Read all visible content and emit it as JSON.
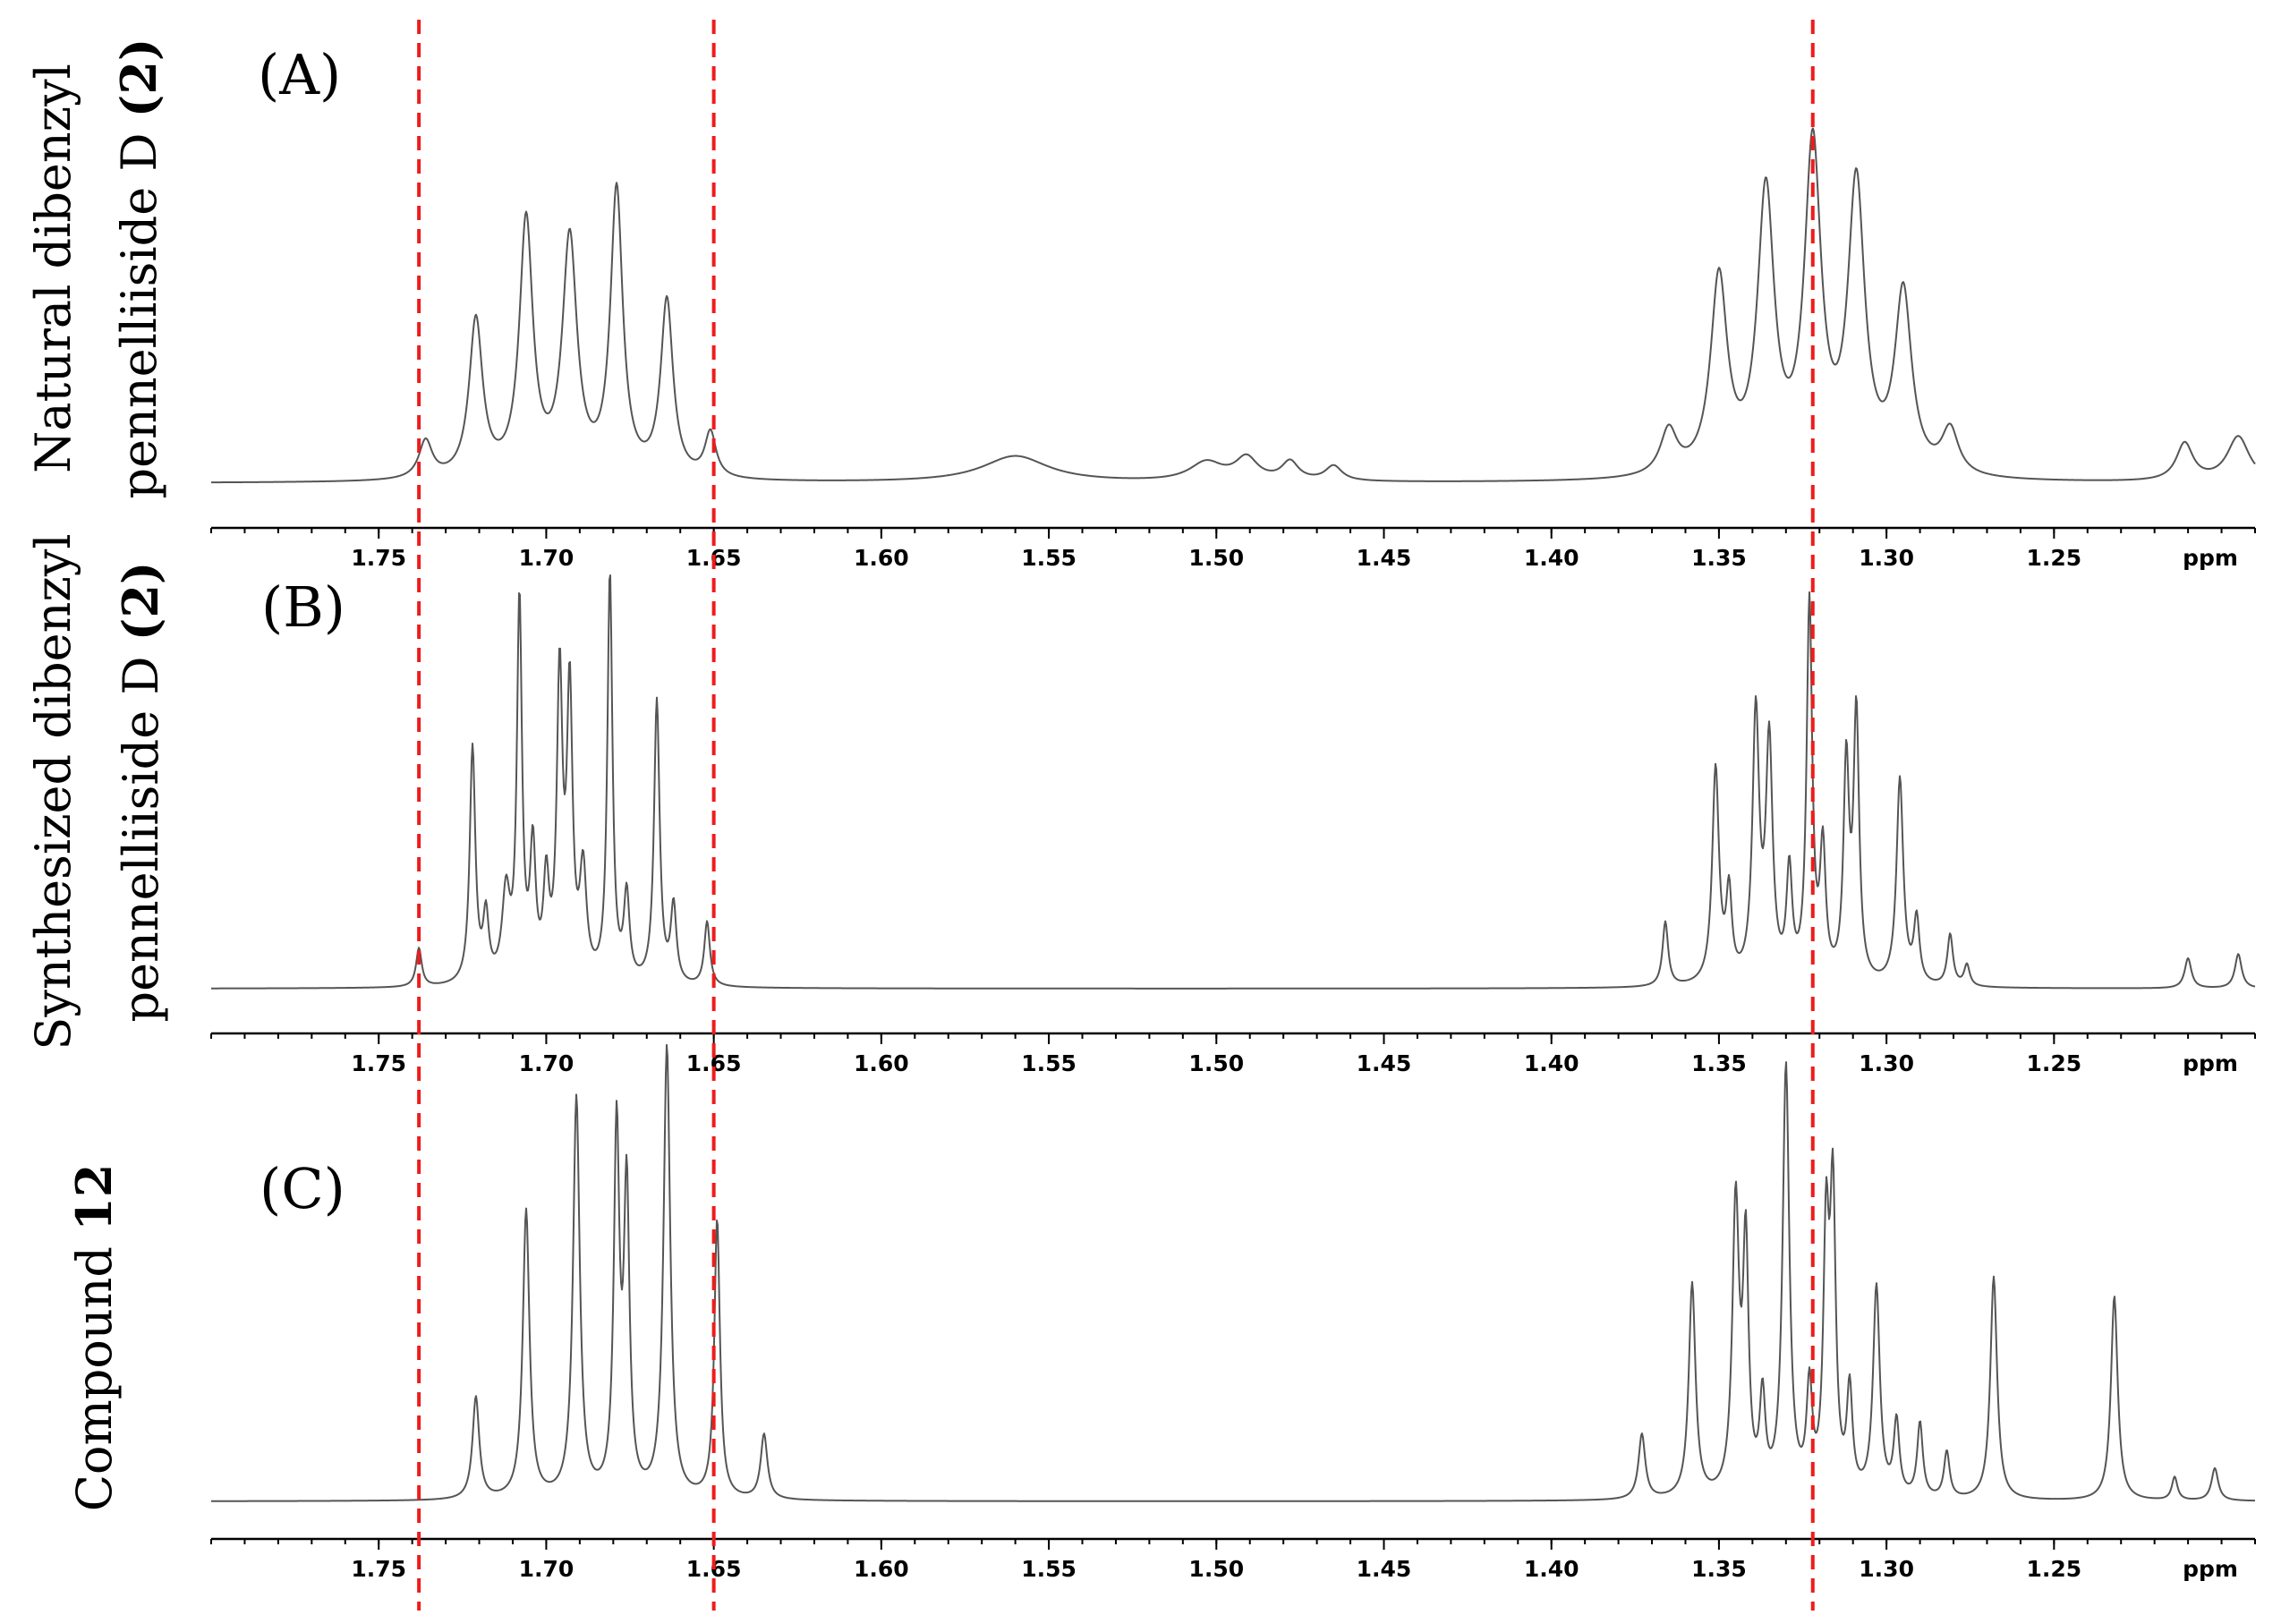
{
  "chart_data": {
    "type": "line",
    "x_axis": {
      "unit_label": "ppm",
      "reversed": true,
      "xlim": [
        1.8,
        1.19
      ],
      "tick_labels": [
        "1.75",
        "1.70",
        "1.65",
        "1.60",
        "1.55",
        "1.50",
        "1.45",
        "1.40",
        "1.35",
        "1.30",
        "1.25"
      ],
      "minor_tick_step": 0.01
    },
    "reference_lines": {
      "color": "#ee1c1c",
      "style": "dashed",
      "x": [
        1.738,
        1.65,
        1.322
      ]
    },
    "line_color": "#555555",
    "panels": [
      {
        "panel_label": "(A)",
        "side_label_lines": [
          [
            {
              "text": "Natural dibenzyl",
              "bold": false
            }
          ],
          [
            {
              "text": "pennelliiside D ",
              "bold": false
            },
            {
              "text": "(2)",
              "bold": true
            }
          ]
        ],
        "baseline": 0.0,
        "peaks": [
          {
            "x": 1.736,
            "h": 0.1,
            "w": 0.0024
          },
          {
            "x": 1.721,
            "h": 0.42,
            "w": 0.0024
          },
          {
            "x": 1.706,
            "h": 0.68,
            "w": 0.0024
          },
          {
            "x": 1.693,
            "h": 0.63,
            "w": 0.0026
          },
          {
            "x": 1.679,
            "h": 0.76,
            "w": 0.0022
          },
          {
            "x": 1.664,
            "h": 0.47,
            "w": 0.0022
          },
          {
            "x": 1.651,
            "h": 0.12,
            "w": 0.002
          },
          {
            "x": 1.56,
            "h": 0.07,
            "w": 0.012
          },
          {
            "x": 1.503,
            "h": 0.05,
            "w": 0.006
          },
          {
            "x": 1.491,
            "h": 0.06,
            "w": 0.004
          },
          {
            "x": 1.478,
            "h": 0.05,
            "w": 0.003
          },
          {
            "x": 1.465,
            "h": 0.04,
            "w": 0.003
          },
          {
            "x": 1.365,
            "h": 0.12,
            "w": 0.003
          },
          {
            "x": 1.35,
            "h": 0.52,
            "w": 0.003
          },
          {
            "x": 1.336,
            "h": 0.74,
            "w": 0.003
          },
          {
            "x": 1.322,
            "h": 0.86,
            "w": 0.003
          },
          {
            "x": 1.309,
            "h": 0.76,
            "w": 0.003
          },
          {
            "x": 1.295,
            "h": 0.48,
            "w": 0.003
          },
          {
            "x": 1.281,
            "h": 0.12,
            "w": 0.003
          },
          {
            "x": 1.211,
            "h": 0.1,
            "w": 0.003
          },
          {
            "x": 1.195,
            "h": 0.12,
            "w": 0.004
          }
        ]
      },
      {
        "panel_label": "(B)",
        "side_label_lines": [
          [
            {
              "text": "Synthesized dibenzyl",
              "bold": false
            }
          ],
          [
            {
              "text": "pennelliiside D ",
              "bold": false
            },
            {
              "text": "(2)",
              "bold": true
            }
          ]
        ],
        "baseline": 0.0,
        "peaks": [
          {
            "x": 1.738,
            "h": 0.09,
            "w": 0.001
          },
          {
            "x": 1.722,
            "h": 0.55,
            "w": 0.001
          },
          {
            "x": 1.718,
            "h": 0.15,
            "w": 0.001
          },
          {
            "x": 1.712,
            "h": 0.2,
            "w": 0.0014
          },
          {
            "x": 1.708,
            "h": 0.88,
            "w": 0.0009
          },
          {
            "x": 1.704,
            "h": 0.3,
            "w": 0.001
          },
          {
            "x": 1.7,
            "h": 0.22,
            "w": 0.001
          },
          {
            "x": 1.696,
            "h": 0.7,
            "w": 0.001
          },
          {
            "x": 1.693,
            "h": 0.66,
            "w": 0.001
          },
          {
            "x": 1.689,
            "h": 0.25,
            "w": 0.0012
          },
          {
            "x": 1.681,
            "h": 0.95,
            "w": 0.0009
          },
          {
            "x": 1.676,
            "h": 0.2,
            "w": 0.001
          },
          {
            "x": 1.667,
            "h": 0.66,
            "w": 0.001
          },
          {
            "x": 1.662,
            "h": 0.18,
            "w": 0.001
          },
          {
            "x": 1.652,
            "h": 0.15,
            "w": 0.001
          },
          {
            "x": 1.366,
            "h": 0.15,
            "w": 0.001
          },
          {
            "x": 1.351,
            "h": 0.5,
            "w": 0.0012
          },
          {
            "x": 1.347,
            "h": 0.2,
            "w": 0.001
          },
          {
            "x": 1.339,
            "h": 0.62,
            "w": 0.0012
          },
          {
            "x": 1.335,
            "h": 0.55,
            "w": 0.0012
          },
          {
            "x": 1.329,
            "h": 0.25,
            "w": 0.001
          },
          {
            "x": 1.323,
            "h": 0.88,
            "w": 0.001
          },
          {
            "x": 1.319,
            "h": 0.3,
            "w": 0.001
          },
          {
            "x": 1.312,
            "h": 0.5,
            "w": 0.001
          },
          {
            "x": 1.309,
            "h": 0.62,
            "w": 0.001
          },
          {
            "x": 1.296,
            "h": 0.48,
            "w": 0.0012
          },
          {
            "x": 1.291,
            "h": 0.15,
            "w": 0.001
          },
          {
            "x": 1.281,
            "h": 0.12,
            "w": 0.001
          },
          {
            "x": 1.276,
            "h": 0.05,
            "w": 0.001
          },
          {
            "x": 1.21,
            "h": 0.07,
            "w": 0.0012
          },
          {
            "x": 1.195,
            "h": 0.08,
            "w": 0.0012
          }
        ]
      },
      {
        "panel_label": "(C)",
        "side_label_lines": [
          [
            {
              "text": "Compound ",
              "bold": false
            },
            {
              "text": "12",
              "bold": true
            }
          ]
        ],
        "baseline": 0.0,
        "peaks": [
          {
            "x": 1.721,
            "h": 0.22,
            "w": 0.0012
          },
          {
            "x": 1.706,
            "h": 0.62,
            "w": 0.0012
          },
          {
            "x": 1.691,
            "h": 0.86,
            "w": 0.0012
          },
          {
            "x": 1.679,
            "h": 0.78,
            "w": 0.001
          },
          {
            "x": 1.676,
            "h": 0.65,
            "w": 0.001
          },
          {
            "x": 1.664,
            "h": 0.97,
            "w": 0.0012
          },
          {
            "x": 1.649,
            "h": 0.6,
            "w": 0.001
          },
          {
            "x": 1.635,
            "h": 0.14,
            "w": 0.0012
          },
          {
            "x": 1.373,
            "h": 0.14,
            "w": 0.0012
          },
          {
            "x": 1.358,
            "h": 0.46,
            "w": 0.0012
          },
          {
            "x": 1.345,
            "h": 0.62,
            "w": 0.0012
          },
          {
            "x": 1.342,
            "h": 0.52,
            "w": 0.001
          },
          {
            "x": 1.337,
            "h": 0.2,
            "w": 0.001
          },
          {
            "x": 1.33,
            "h": 0.92,
            "w": 0.0012
          },
          {
            "x": 1.323,
            "h": 0.22,
            "w": 0.001
          },
          {
            "x": 1.318,
            "h": 0.54,
            "w": 0.001
          },
          {
            "x": 1.316,
            "h": 0.62,
            "w": 0.001
          },
          {
            "x": 1.311,
            "h": 0.22,
            "w": 0.001
          },
          {
            "x": 1.303,
            "h": 0.45,
            "w": 0.0012
          },
          {
            "x": 1.297,
            "h": 0.16,
            "w": 0.001
          },
          {
            "x": 1.29,
            "h": 0.16,
            "w": 0.001
          },
          {
            "x": 1.282,
            "h": 0.1,
            "w": 0.001
          },
          {
            "x": 1.268,
            "h": 0.48,
            "w": 0.0012
          },
          {
            "x": 1.232,
            "h": 0.44,
            "w": 0.0012
          },
          {
            "x": 1.214,
            "h": 0.05,
            "w": 0.001
          },
          {
            "x": 1.202,
            "h": 0.07,
            "w": 0.0012
          }
        ]
      }
    ]
  }
}
